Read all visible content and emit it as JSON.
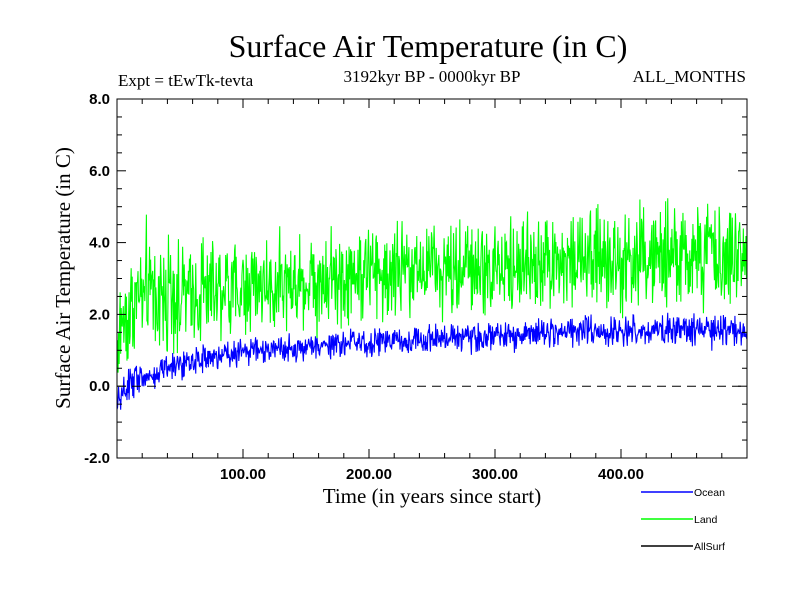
{
  "chart_data": {
    "type": "line",
    "title": "Surface Air Temperature (in C)",
    "subtitle": "3192kyr BP - 0000kyr BP",
    "experiment_label": "Expt = tEwTk-tevta",
    "months_label": "ALL_MONTHS",
    "xlabel": "Time (in years since start)",
    "ylabel": "Surface Air Temperature (in C)",
    "xlim": [
      0,
      500
    ],
    "ylim": [
      -2.0,
      8.0
    ],
    "x_ticks": [
      {
        "value": 100,
        "label": "100.00"
      },
      {
        "value": 200,
        "label": "200.00"
      },
      {
        "value": 300,
        "label": "300.00"
      },
      {
        "value": 400,
        "label": "400.00"
      }
    ],
    "y_ticks": [
      {
        "value": -2.0,
        "label": "-2.0"
      },
      {
        "value": 0.0,
        "label": "0.0"
      },
      {
        "value": 2.0,
        "label": "2.0"
      },
      {
        "value": 4.0,
        "label": "4.0"
      },
      {
        "value": 6.0,
        "label": "6.0"
      },
      {
        "value": 8.0,
        "label": "8.0"
      }
    ],
    "reference_line": {
      "value": 0.0,
      "style": "dashed"
    },
    "legend_position": "bottom-right, outside plot",
    "series": [
      {
        "name": "Land",
        "color": "#00ff00",
        "x_keyframes": [
          0,
          5,
          20,
          50,
          100,
          150,
          200,
          250,
          300,
          350,
          400,
          450,
          500
        ],
        "mean": [
          1.0,
          2.0,
          2.5,
          2.6,
          2.8,
          3.0,
          3.2,
          3.2,
          3.4,
          3.5,
          3.6,
          3.6,
          3.6
        ],
        "amplitude": [
          1.3,
          1.6,
          1.8,
          1.8,
          1.6,
          1.6,
          1.6,
          1.6,
          1.7,
          1.7,
          1.7,
          1.7,
          1.7
        ]
      },
      {
        "name": "Ocean",
        "color": "#0000ff",
        "x_keyframes": [
          0,
          5,
          20,
          50,
          100,
          150,
          200,
          250,
          300,
          350,
          400,
          450,
          500
        ],
        "mean": [
          -0.6,
          -0.1,
          0.3,
          0.6,
          0.95,
          1.1,
          1.25,
          1.3,
          1.4,
          1.5,
          1.55,
          1.6,
          1.55
        ],
        "amplitude": [
          0.55,
          0.55,
          0.5,
          0.5,
          0.45,
          0.45,
          0.5,
          0.5,
          0.5,
          0.5,
          0.5,
          0.5,
          0.5
        ]
      },
      {
        "name": "AllSurf",
        "color": "#000000",
        "x_keyframes": [],
        "mean": [],
        "amplitude": []
      }
    ]
  }
}
